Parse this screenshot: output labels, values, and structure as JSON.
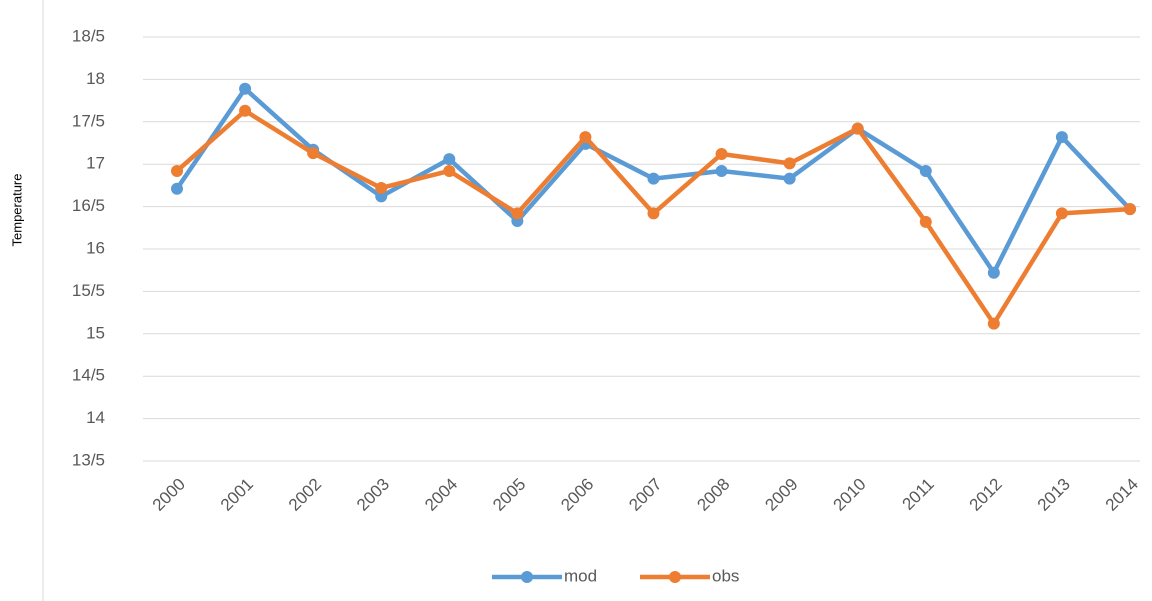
{
  "chart_data": {
    "type": "line",
    "y_label": "Temperature",
    "categories": [
      "2000",
      "2001",
      "2002",
      "2003",
      "2004",
      "2005",
      "2006",
      "2007",
      "2008",
      "2009",
      "2010",
      "2011",
      "2012",
      "2013",
      "2014"
    ],
    "series": [
      {
        "name": "mod",
        "color": "#5b9bd5",
        "values": [
          16.71,
          17.89,
          17.17,
          16.62,
          17.06,
          16.33,
          17.24,
          16.83,
          16.92,
          16.83,
          17.42,
          16.92,
          15.72,
          17.32,
          16.47
        ]
      },
      {
        "name": "obs",
        "color": "#ed7d31",
        "values": [
          16.92,
          17.63,
          17.13,
          16.72,
          16.92,
          16.42,
          17.32,
          16.42,
          17.12,
          17.01,
          17.42,
          16.32,
          15.12,
          16.42,
          16.47
        ]
      }
    ],
    "ylim": [
      13.5,
      18.5
    ],
    "yticks": [
      {
        "value": 13.5,
        "label": "13/5"
      },
      14,
      {
        "value": 14.5,
        "label": "14/5"
      },
      15,
      {
        "value": 15.5,
        "label": "15/5"
      },
      16,
      {
        "value": 16.5,
        "label": "16/5"
      },
      17,
      {
        "value": 17.5,
        "label": "17/5"
      },
      18,
      {
        "value": 18.5,
        "label": "18/5"
      }
    ],
    "grid": true
  }
}
